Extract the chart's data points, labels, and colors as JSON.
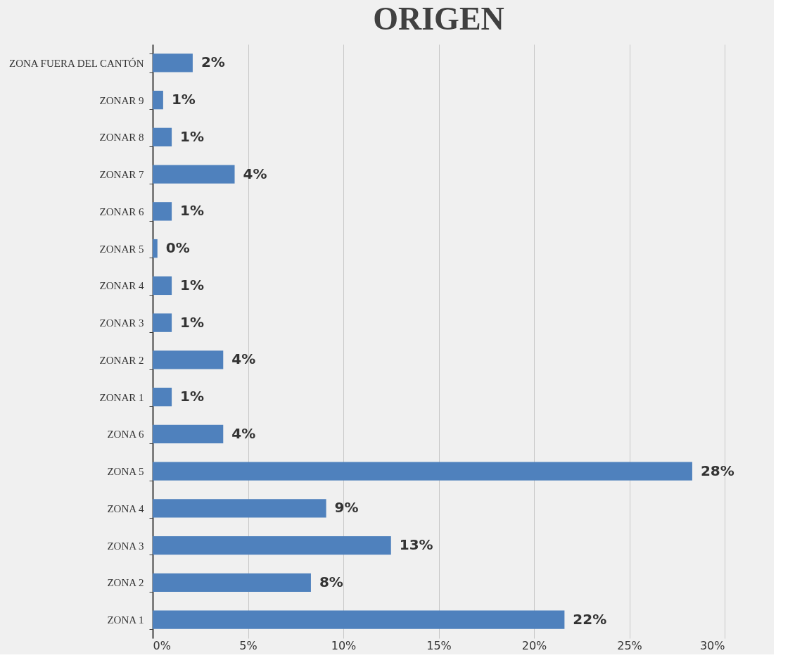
{
  "chart_data": {
    "type": "bar",
    "orientation": "horizontal",
    "title": "ORIGEN",
    "categories": [
      "ZONA FUERA DEL CANTÓN",
      "ZONAR 9",
      "ZONAR 8",
      "ZONAR 7",
      "ZONAR 6",
      "ZONAR 5",
      "ZONAR 4",
      "ZONAR 3",
      "ZONAR 2",
      "ZONAR 1",
      "ZONA 6",
      "ZONA 5",
      "ZONA 4",
      "ZONA 3",
      "ZONA 2",
      "ZONA 1"
    ],
    "values": [
      2.1,
      0.55,
      1.0,
      4.3,
      1.0,
      0.25,
      1.0,
      1.0,
      3.7,
      1.0,
      3.7,
      28.3,
      9.1,
      12.5,
      8.3,
      21.6
    ],
    "value_labels": [
      "2%",
      "1%",
      "1%",
      "4%",
      "1%",
      "0%",
      "1%",
      "1%",
      "4%",
      "1%",
      "4%",
      "28%",
      "9%",
      "13%",
      "8%",
      "22%"
    ],
    "color": "#4f81bd",
    "xlim": [
      0,
      30
    ],
    "xticks": [
      {
        "value": 0,
        "label": "0%"
      },
      {
        "value": 5,
        "label": "5%"
      },
      {
        "value": 10,
        "label": "10%"
      },
      {
        "value": 15,
        "label": "15%"
      },
      {
        "value": 20,
        "label": "20%"
      },
      {
        "value": 25,
        "label": "25%"
      },
      {
        "value": 30,
        "label": "30%"
      }
    ],
    "grid": "x"
  }
}
